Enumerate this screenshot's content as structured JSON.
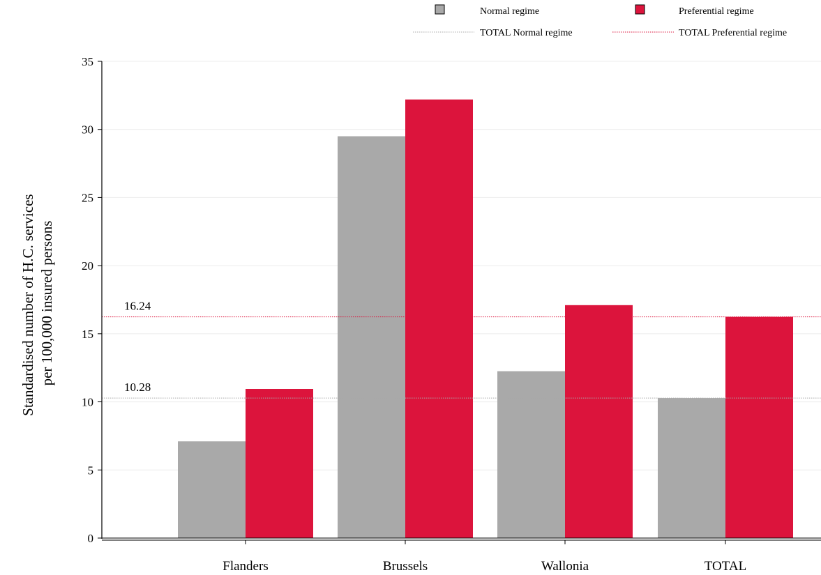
{
  "chart_data": {
    "type": "bar",
    "categories": [
      "Flanders",
      "Brussels",
      "Wallonia",
      "TOTAL"
    ],
    "series": [
      {
        "name": "Normal regime",
        "color": "#a9a9a9",
        "values": [
          7.1,
          29.5,
          12.25,
          10.28
        ]
      },
      {
        "name": "Preferential regime",
        "color": "#dc143c",
        "values": [
          10.95,
          32.2,
          17.1,
          16.24
        ]
      }
    ],
    "reference_lines": [
      {
        "name": "TOTAL Normal regime",
        "value": 10.28,
        "label": "10.28",
        "color": "#a9a9a9"
      },
      {
        "name": "TOTAL Preferential regime",
        "value": 16.24,
        "label": "16.24",
        "color": "#dc143c"
      }
    ],
    "ylabel_lines": [
      "Standardised number of H.C. services",
      "per 100,000 insured persons"
    ],
    "xlabel": "",
    "ylim": [
      0,
      35
    ],
    "yticks": [
      0,
      5,
      10,
      15,
      20,
      25,
      30,
      35
    ],
    "grid": true,
    "legend_position": "top-right"
  }
}
